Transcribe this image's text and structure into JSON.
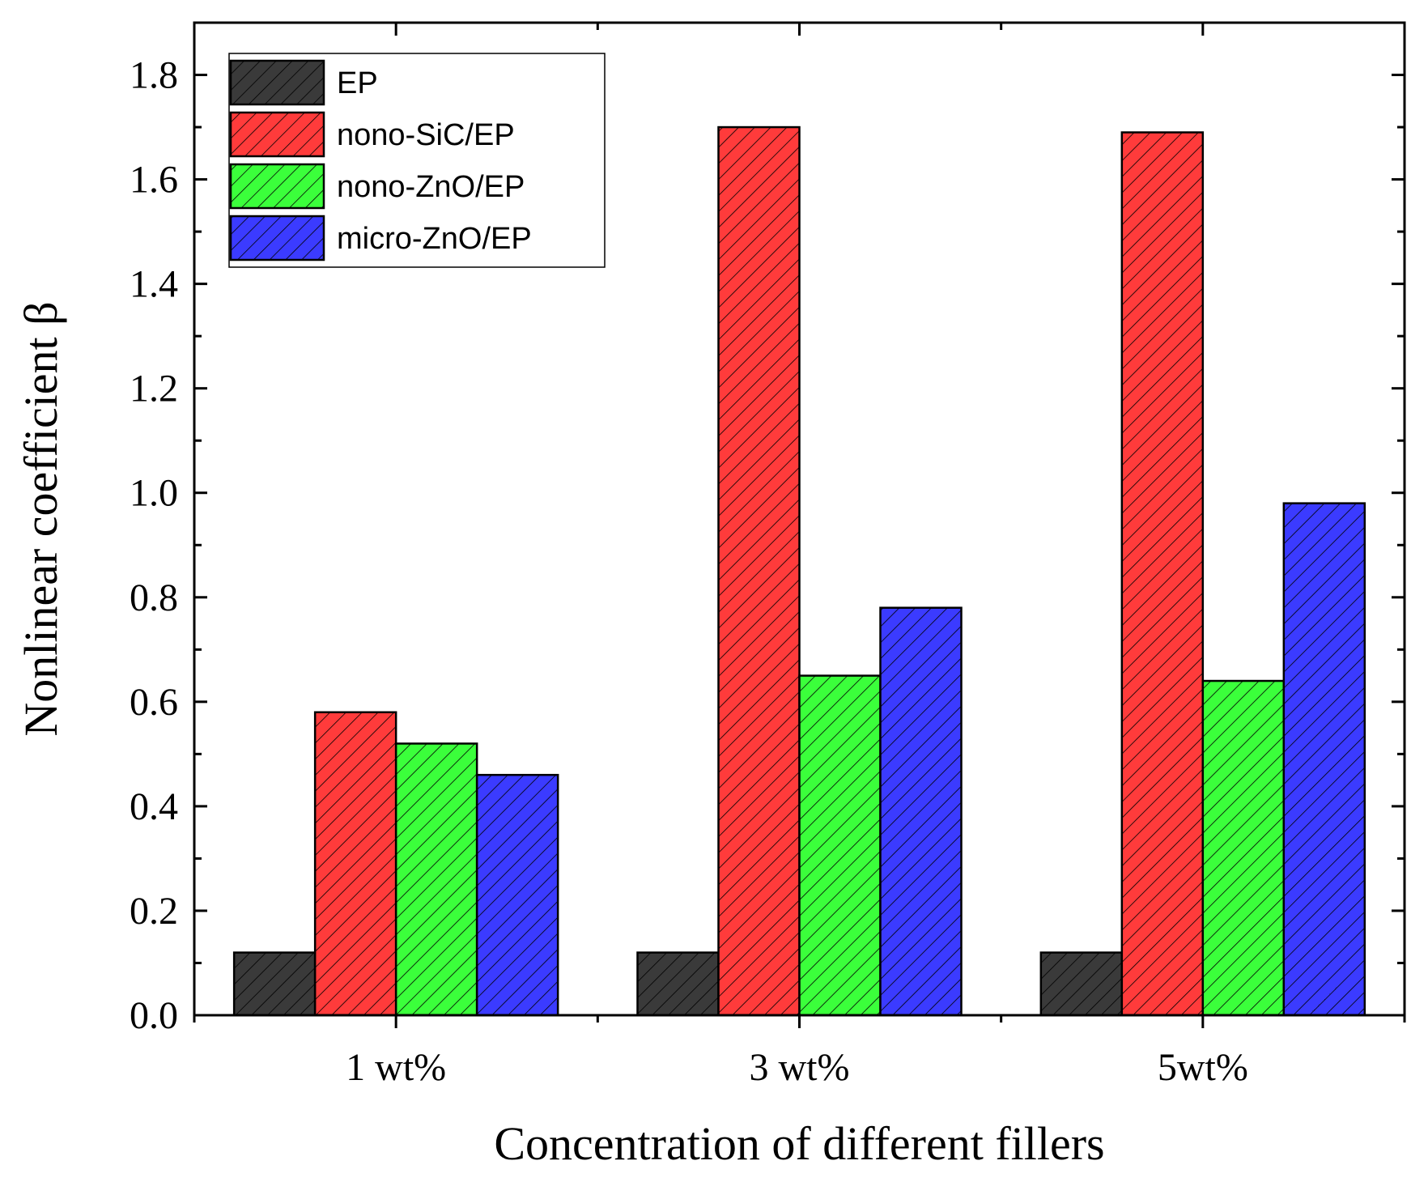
{
  "chart_data": {
    "type": "bar",
    "title": "",
    "xlabel": "Concentration of different fillers",
    "ylabel": "Nonlinear coefficient β",
    "categories": [
      "1 wt%",
      "3 wt%",
      "5wt%"
    ],
    "series": [
      {
        "name": "EP",
        "color": "#3a3a3a",
        "values": [
          0.12,
          0.12,
          0.12
        ]
      },
      {
        "name": "nono-SiC/EP",
        "color": "#ff3b3b",
        "values": [
          0.58,
          1.7,
          1.69
        ]
      },
      {
        "name": "nono-ZnO/EP",
        "color": "#3bff3b",
        "values": [
          0.52,
          0.65,
          0.64
        ]
      },
      {
        "name": "micro-ZnO/EP",
        "color": "#3b3bff",
        "values": [
          0.46,
          0.78,
          0.98
        ]
      }
    ],
    "ylim": [
      0,
      1.9
    ],
    "yticks": [
      "0.0",
      "0.2",
      "0.4",
      "0.6",
      "0.8",
      "1.0",
      "1.2",
      "1.4",
      "1.6",
      "1.8"
    ],
    "ytick_values": [
      0,
      0.2,
      0.4,
      0.6,
      0.8,
      1.0,
      1.2,
      1.4,
      1.6,
      1.8
    ],
    "legend_position": "top-left",
    "pattern": "diagonal-hatch",
    "grid": false
  }
}
